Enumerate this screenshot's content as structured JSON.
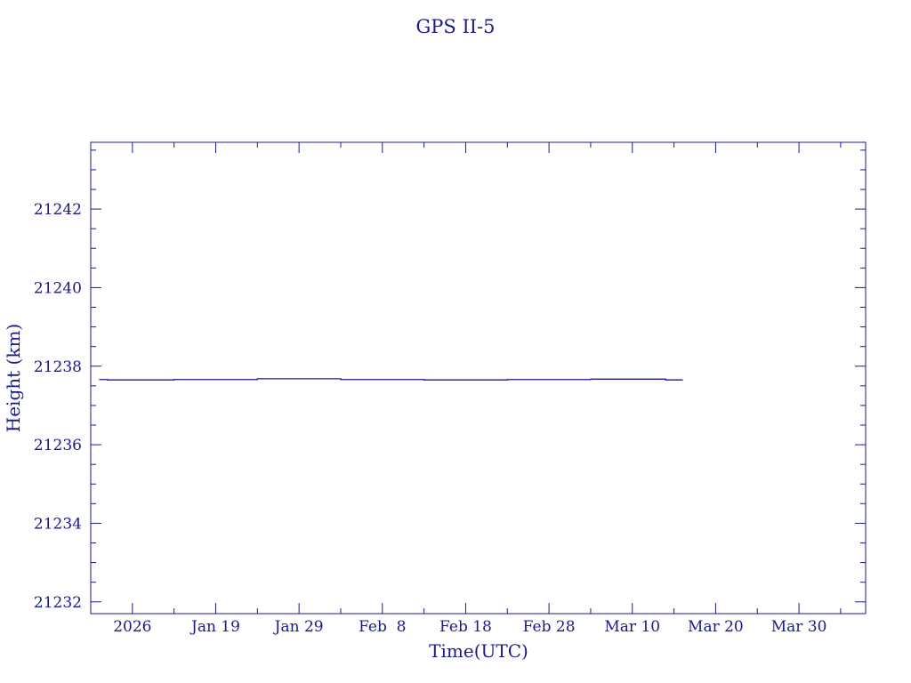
{
  "colors": {
    "ink": "#1a1a8c",
    "background": "#ffffff"
  },
  "chart_data": {
    "type": "line",
    "title": "GPS II-5",
    "xlabel": "Time(UTC)",
    "ylabel": "Height (km)",
    "ylim": [
      21231.7,
      21243.7
    ],
    "xlim": [
      "2026-01-04",
      "2026-04-07"
    ],
    "grid": false,
    "x_tick_labels": [
      {
        "date": "2026-01-09",
        "label": "2026"
      },
      {
        "date": "2026-01-19",
        "label": "Jan 19"
      },
      {
        "date": "2026-01-29",
        "label": "Jan 29"
      },
      {
        "date": "2026-02-08",
        "label": "Feb  8"
      },
      {
        "date": "2026-02-18",
        "label": "Feb 18"
      },
      {
        "date": "2026-02-28",
        "label": "Feb 28"
      },
      {
        "date": "2026-03-10",
        "label": "Mar 10"
      },
      {
        "date": "2026-03-20",
        "label": "Mar 20"
      },
      {
        "date": "2026-03-30",
        "label": "Mar 30"
      }
    ],
    "y_ticks": [
      21232,
      21234,
      21236,
      21238,
      21240,
      21242
    ],
    "series": [
      {
        "x": [
          "2026-01-05",
          "2026-01-06",
          "2026-01-14",
          "2026-01-24",
          "2026-02-03",
          "2026-02-13",
          "2026-02-23",
          "2026-03-05",
          "2026-03-14",
          "2026-03-16"
        ],
        "y": [
          21237.66,
          21237.65,
          21237.66,
          21237.68,
          21237.66,
          21237.65,
          21237.66,
          21237.67,
          21237.65,
          21237.66
        ]
      }
    ]
  }
}
